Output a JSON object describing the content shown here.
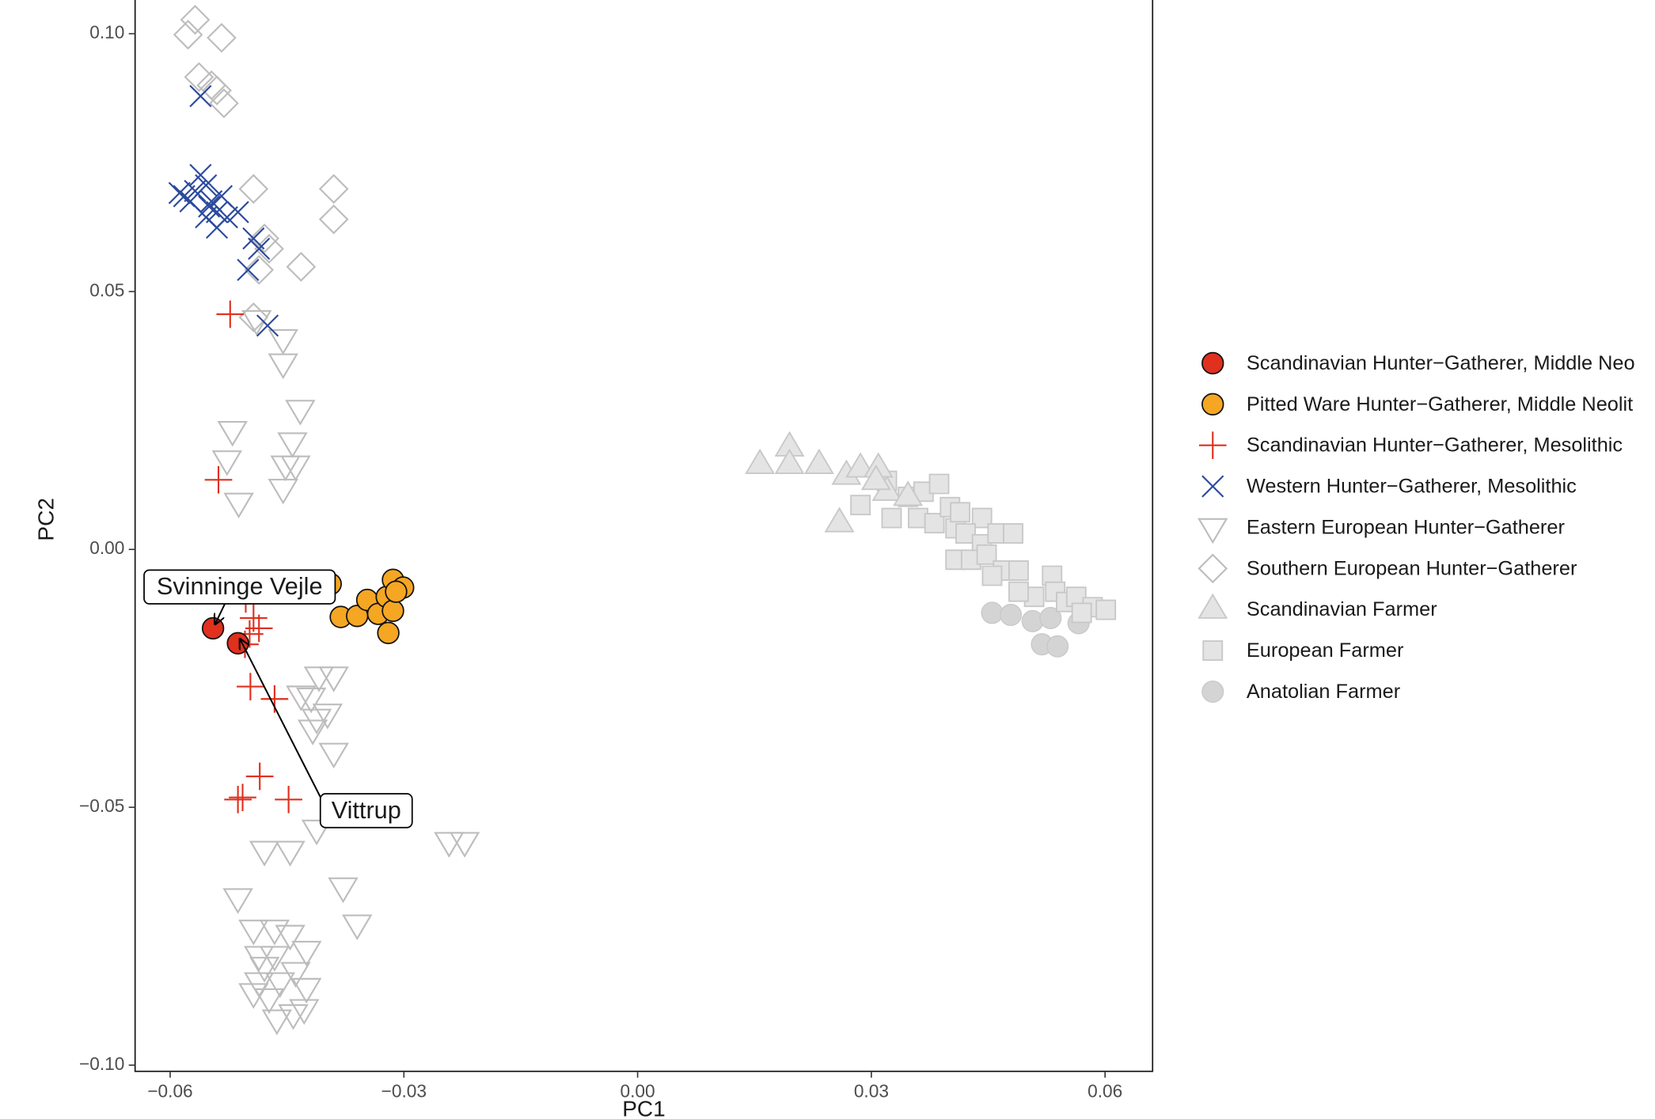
{
  "chart_data": {
    "type": "scatter",
    "x_label": "PC1",
    "y_label": "PC2",
    "xlim": [
      -0.0645,
      0.0661
    ],
    "ylim": [
      -0.1012,
      0.1065
    ],
    "xticks": [
      {
        "value": -0.06,
        "label": "−0.06"
      },
      {
        "value": -0.03,
        "label": "−0.03"
      },
      {
        "value": 0,
        "label": "0.00"
      },
      {
        "value": 0.03,
        "label": "0.03"
      },
      {
        "value": 0.06,
        "label": "0.06"
      }
    ],
    "yticks": [
      {
        "value": 0.1,
        "label": "0.10"
      },
      {
        "value": 0.05,
        "label": "0.05"
      },
      {
        "value": 0,
        "label": "0.00"
      },
      {
        "value": -0.05,
        "label": "−0.05"
      },
      {
        "value": -0.1,
        "label": "−0.10"
      }
    ],
    "grid": false,
    "legend": "right",
    "annotations": [
      "Svinninge Vejle",
      "Vittrup"
    ],
    "series": [
      {
        "name": "Scandinavian Hunter−Gatherer, Middle Neo",
        "marker": "circle",
        "color": "#e0301e",
        "x": [
          -0.0545,
          -0.0513
        ],
        "values": [
          -0.0153,
          -0.0182
        ]
      },
      {
        "name": "Pitted Ware Hunter−Gatherer, Middle Neolit",
        "marker": "circle",
        "color": "#f5a623",
        "x": [
          -0.0394,
          -0.0381,
          -0.036,
          -0.0347,
          -0.0333,
          -0.0322,
          -0.0314,
          -0.0301,
          -0.0314,
          -0.032,
          -0.031
        ],
        "values": [
          -0.0067,
          -0.0131,
          -0.0129,
          -0.0098,
          -0.0125,
          -0.0092,
          -0.0059,
          -0.0074,
          -0.0119,
          -0.0162,
          -0.0082
        ]
      },
      {
        "name": "Scandinavian Hunter−Gatherer, Mesolithic",
        "marker": "plus",
        "color": "#e0301e",
        "x": [
          -0.0523,
          -0.0538,
          -0.0503,
          -0.0493,
          -0.0486,
          -0.0498,
          -0.0497,
          -0.0466,
          -0.0485,
          -0.0513,
          -0.0507,
          -0.0448,
          -0.0504
        ],
        "values": [
          0.0456,
          0.0135,
          -0.0096,
          -0.0133,
          -0.0153,
          -0.0164,
          -0.0266,
          -0.029,
          -0.044,
          -0.0485,
          -0.0481,
          -0.0485,
          -0.0184
        ]
      },
      {
        "name": "Western Hunter−Gatherer, Mesolithic",
        "marker": "cross",
        "color": "#2b4a9e",
        "x": [
          -0.0561,
          -0.0582,
          -0.0568,
          -0.0561,
          -0.0554,
          -0.0547,
          -0.054,
          -0.0554,
          -0.0534,
          -0.0527,
          -0.054,
          -0.0574,
          -0.0513,
          -0.0493,
          -0.0486,
          -0.05,
          -0.0475,
          -0.0588,
          -0.055
        ],
        "values": [
          0.0879,
          0.0685,
          0.0695,
          0.0726,
          0.0706,
          0.0675,
          0.0654,
          0.0644,
          0.0685,
          0.0644,
          0.0624,
          0.0675,
          0.0654,
          0.0603,
          0.0583,
          0.0542,
          0.0434,
          0.0691,
          0.0665
        ]
      },
      {
        "name": "Eastern European Hunter−Gatherer",
        "marker": "triangle-down",
        "color": "#bdbdbd",
        "x": [
          -0.0489,
          -0.0455,
          -0.0455,
          -0.0433,
          -0.052,
          -0.0527,
          -0.0512,
          -0.0443,
          -0.0452,
          -0.0455,
          -0.0439,
          -0.0409,
          -0.039,
          -0.0419,
          -0.0412,
          -0.0398,
          -0.039,
          -0.0432,
          -0.0417,
          -0.0513,
          -0.0479,
          -0.0446,
          -0.0412,
          -0.0378,
          -0.036,
          -0.0242,
          -0.0222,
          -0.0493,
          -0.0466,
          -0.0446,
          -0.0425,
          -0.0486,
          -0.0466,
          -0.0439,
          -0.0486,
          -0.0459,
          -0.0425,
          -0.0493,
          -0.0463,
          -0.0442,
          -0.0428,
          -0.0473,
          -0.0479
        ],
        "values": [
          0.0446,
          0.0409,
          0.0362,
          0.0272,
          0.0231,
          0.0174,
          0.0092,
          0.0209,
          0.0164,
          0.0119,
          0.0164,
          -0.0245,
          -0.0245,
          -0.0286,
          -0.0327,
          -0.0317,
          -0.0393,
          -0.0282,
          -0.0348,
          -0.0675,
          -0.0583,
          -0.0583,
          -0.0542,
          -0.0654,
          -0.0726,
          -0.0566,
          -0.0566,
          -0.0736,
          -0.0736,
          -0.0746,
          -0.0777,
          -0.0787,
          -0.0787,
          -0.0818,
          -0.0838,
          -0.0838,
          -0.0849,
          -0.0859,
          -0.091,
          -0.09,
          -0.089,
          -0.0869,
          -0.0808
        ]
      },
      {
        "name": "Southern European Hunter−Gatherer",
        "marker": "diamond",
        "color": "#bdbdbd",
        "x": [
          -0.0568,
          -0.0577,
          -0.0534,
          -0.0563,
          -0.0547,
          -0.0531,
          -0.054,
          -0.0493,
          -0.039,
          -0.039,
          -0.0479,
          -0.0473,
          -0.0432,
          -0.0486,
          -0.0493
        ],
        "values": [
          0.1027,
          0.0998,
          0.0992,
          0.0916,
          0.09,
          0.0865,
          0.089,
          0.0699,
          0.0699,
          0.064,
          0.0603,
          0.0583,
          0.0548,
          0.0542,
          0.045
        ]
      },
      {
        "name": "Scandinavian Farmer",
        "marker": "triangle-up",
        "color": "#c8c8c8",
        "x": [
          0.0157,
          0.0195,
          0.0195,
          0.0233,
          0.0268,
          0.0286,
          0.0309,
          0.0259,
          0.032,
          0.0347,
          0.0306
        ],
        "values": [
          0.0164,
          0.0198,
          0.0164,
          0.0164,
          0.0143,
          0.0157,
          0.0157,
          0.0051,
          0.0112,
          0.0102,
          0.0133
        ]
      },
      {
        "name": "European Farmer",
        "marker": "square",
        "color": "#c8c8c8",
        "x": [
          0.0286,
          0.032,
          0.0326,
          0.0347,
          0.0367,
          0.0387,
          0.036,
          0.0381,
          0.0401,
          0.0408,
          0.0414,
          0.0442,
          0.0421,
          0.0442,
          0.0462,
          0.0482,
          0.0408,
          0.0428,
          0.0448,
          0.0469,
          0.0489,
          0.0455,
          0.0532,
          0.0536,
          0.0509,
          0.055,
          0.0563,
          0.0584,
          0.0601,
          0.0489,
          0.057
        ],
        "values": [
          0.0086,
          0.0133,
          0.0061,
          0.0102,
          0.0112,
          0.0127,
          0.0061,
          0.0051,
          0.0082,
          0.0041,
          0.0072,
          0.0061,
          0.0031,
          0.001,
          0.0031,
          0.0031,
          -0.002,
          -0.002,
          -0.001,
          -0.0041,
          -0.0041,
          -0.0051,
          -0.0051,
          -0.0082,
          -0.0092,
          -0.0102,
          -0.0092,
          -0.0112,
          -0.0117,
          -0.0082,
          -0.0123
        ]
      },
      {
        "name": "Anatolian Farmer",
        "marker": "disc",
        "color": "#c8c8c8",
        "x": [
          0.0455,
          0.0479,
          0.0507,
          0.053,
          0.0519,
          0.0539,
          0.0566
        ],
        "values": [
          -0.0123,
          -0.0127,
          -0.0139,
          -0.0133,
          -0.0184,
          -0.0188,
          -0.0143
        ]
      }
    ]
  }
}
